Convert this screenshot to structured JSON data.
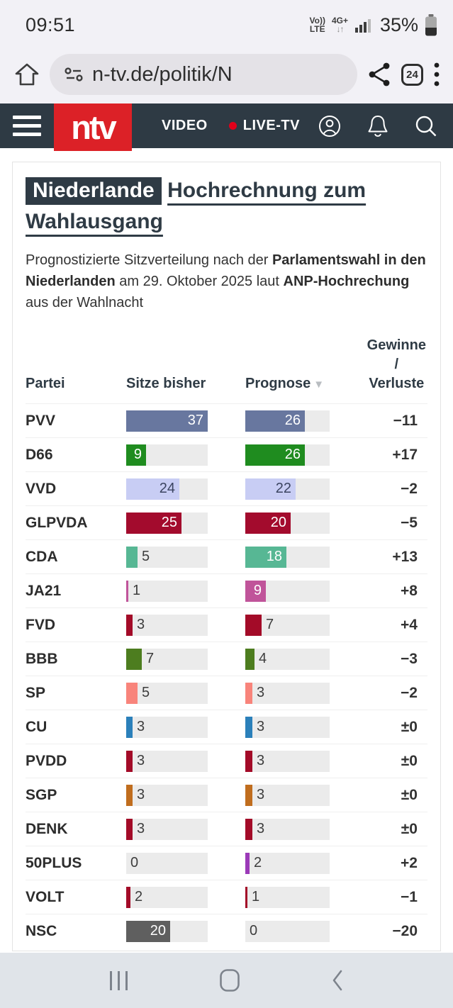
{
  "status_bar": {
    "time": "09:51",
    "volte_line1": "Vo))",
    "volte_line2": "LTE",
    "network": "4G+",
    "network_arrows": "↓↑",
    "battery_percent": "35%"
  },
  "browser": {
    "url": "n-tv.de/politik/N",
    "tab_count": "24"
  },
  "site_header": {
    "logo_text": "ntv",
    "nav_video": "VIDEO",
    "nav_live": "LIVE-TV"
  },
  "article": {
    "kicker": "Niederlande",
    "title": "Hochrechnung zum Wahlausgang",
    "intro": {
      "lead": "Prognostizierte Sitzverteilung nach der ",
      "bold1": "Parlamentswahl in den Niederlanden",
      "mid": " am 29. Oktober 2025 laut ",
      "bold2": "ANP-Hochrechung",
      "tail": " aus der Wahlnacht"
    }
  },
  "chart_data": {
    "type": "table",
    "title": "Hochrechnung zum Wahlausgang",
    "subtitle": "Prognostizierte Sitzverteilung nach der Parlamentswahl in den Niederlanden am 29. Oktober 2025 laut ANP-Hochrechung aus der Wahlnacht",
    "columns": [
      "Partei",
      "Sitze bisher",
      "Prognose",
      "Gewinne / Verluste"
    ],
    "sort": {
      "column": "Prognose",
      "direction": "desc",
      "indicator": "▼"
    },
    "scale_max": 37,
    "bar_track_color": "#ebebeb",
    "rows": [
      {
        "party": "PVV",
        "seats_before": 37,
        "forecast": 26,
        "change": "−11",
        "color": "#68779f"
      },
      {
        "party": "D66",
        "seats_before": 9,
        "forecast": 26,
        "change": "+17",
        "color": "#1f8c1f"
      },
      {
        "party": "VVD",
        "seats_before": 24,
        "forecast": 22,
        "change": "−2",
        "color": "#c8cdf4",
        "value_label_dark": true
      },
      {
        "party": "GLPVDA",
        "seats_before": 25,
        "forecast": 20,
        "change": "−5",
        "color": "#a30b2d"
      },
      {
        "party": "CDA",
        "seats_before": 5,
        "forecast": 18,
        "change": "+13",
        "color": "#57b794"
      },
      {
        "party": "JA21",
        "seats_before": 1,
        "forecast": 9,
        "change": "+8",
        "color": "#c0549a"
      },
      {
        "party": "FVD",
        "seats_before": 3,
        "forecast": 7,
        "change": "+4",
        "color": "#a30b28"
      },
      {
        "party": "BBB",
        "seats_before": 7,
        "forecast": 4,
        "change": "−3",
        "color": "#4d7d1f"
      },
      {
        "party": "SP",
        "seats_before": 5,
        "forecast": 3,
        "change": "−2",
        "color": "#f8847b"
      },
      {
        "party": "CU",
        "seats_before": 3,
        "forecast": 3,
        "change": "±0",
        "color": "#2b80ba"
      },
      {
        "party": "PVDD",
        "seats_before": 3,
        "forecast": 3,
        "change": "±0",
        "color": "#a30b28"
      },
      {
        "party": "SGP",
        "seats_before": 3,
        "forecast": 3,
        "change": "±0",
        "color": "#c06d1e"
      },
      {
        "party": "DENK",
        "seats_before": 3,
        "forecast": 3,
        "change": "±0",
        "color": "#a30b28"
      },
      {
        "party": "50PLUS",
        "seats_before": 0,
        "forecast": 2,
        "change": "+2",
        "color": "#9b3ab8"
      },
      {
        "party": "VOLT",
        "seats_before": 2,
        "forecast": 1,
        "change": "−1",
        "color": "#a30b28"
      },
      {
        "party": "NSC",
        "seats_before": 20,
        "forecast": 0,
        "change": "−20",
        "color": "#5f5f5f"
      }
    ]
  }
}
